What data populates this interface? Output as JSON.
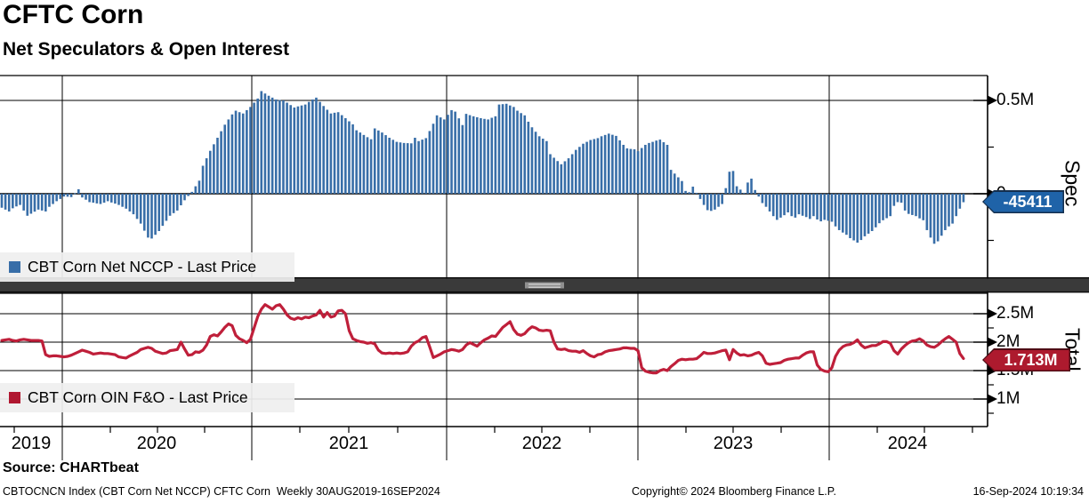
{
  "header": {
    "title": "CFTC Corn",
    "subtitle": "Net Speculators & Open Interest"
  },
  "panels": {
    "spec": {
      "legend": "CBT Corn Net NCCP - Last Price",
      "axis_label": "Spec",
      "last_badge": "-45411",
      "badge_color": "#1f63a8",
      "badge_border": "#142f4e",
      "series_color": "#386ea8"
    },
    "total": {
      "legend": "CBT Corn OIN F&O - Last Price",
      "axis_label": "Total",
      "last_badge": "1.713M",
      "badge_color": "#ad1a2e",
      "badge_border": "#4e0c15",
      "series_color": "#bf1f3a",
      "swatch_color": "#b01730"
    }
  },
  "footer": {
    "source": "Source: CHARTbeat",
    "description": "CBTOCNCN Index (CBT Corn Net NCCP) CFTC Corn  Weekly 30AUG2019-16SEP2024",
    "copyright": "Copyright© 2024 Bloomberg Finance L.P.",
    "timestamp": "16-Sep-2024 10:19:34"
  },
  "chart_data": [
    {
      "type": "bar",
      "title": "CBT Corn Net NCCP - Last Price",
      "ylabel": "Spec",
      "unit": "contracts",
      "frequency": "weekly",
      "x_range": [
        "30AUG2019",
        "16SEP2024"
      ],
      "ylim": [
        -452000,
        633000
      ],
      "grid": true,
      "ticks": [
        {
          "value": 500000,
          "label": "0.5M"
        },
        {
          "value": 0,
          "label": "0"
        }
      ],
      "minor_tick_values": [
        250000,
        -250000
      ],
      "last_value": -45411,
      "values": [
        -75000,
        -85000,
        -95000,
        -78000,
        -68000,
        -60000,
        -90000,
        -118000,
        -107000,
        -96000,
        -85000,
        -90000,
        -95000,
        -70000,
        -55000,
        -40000,
        -28000,
        -15000,
        -16000,
        -18000,
        3000,
        24000,
        -20000,
        -32000,
        -45000,
        -48000,
        -52000,
        -55000,
        -48000,
        -40000,
        -47000,
        -53000,
        -60000,
        -70000,
        -80000,
        -95000,
        -110000,
        -135000,
        -160000,
        -198000,
        -235000,
        -240000,
        -220000,
        -200000,
        -172000,
        -145000,
        -118000,
        -104000,
        -90000,
        -62000,
        -35000,
        -12000,
        10000,
        40000,
        70000,
        150000,
        190000,
        230000,
        265000,
        300000,
        335000,
        370000,
        398000,
        425000,
        445000,
        437000,
        430000,
        448000,
        465000,
        488000,
        510000,
        550000,
        537000,
        525000,
        515000,
        505000,
        502000,
        500000,
        488000,
        475000,
        462000,
        468000,
        473000,
        478000,
        492000,
        505000,
        515000,
        492000,
        470000,
        450000,
        430000,
        434000,
        437000,
        421000,
        405000,
        388000,
        372000,
        340000,
        328000,
        315000,
        303000,
        292000,
        350000,
        339000,
        328000,
        314000,
        300000,
        289000,
        278000,
        275000,
        272000,
        271000,
        270000,
        300000,
        282000,
        290000,
        298000,
        336000,
        375000,
        420000,
        409000,
        398000,
        423000,
        448000,
        440000,
        404000,
        368000,
        428000,
        421000,
        415000,
        410000,
        405000,
        401000,
        398000,
        407000,
        415000,
        478000,
        480000,
        482000,
        473000,
        465000,
        445000,
        432000,
        420000,
        386000,
        356000,
        332000,
        308000,
        295000,
        282000,
        212000,
        193000,
        175000,
        158000,
        174000,
        190000,
        212000,
        235000,
        251000,
        268000,
        278000,
        288000,
        293000,
        298000,
        308000,
        315000,
        322000,
        316000,
        310000,
        286000,
        262000,
        243000,
        240000,
        238000,
        228000,
        245000,
        262000,
        272000,
        278000,
        285000,
        290000,
        276000,
        262000,
        128000,
        108000,
        88000,
        68000,
        15000,
        8000,
        38000,
        5000,
        -28000,
        -60000,
        -88000,
        -92000,
        -85000,
        -70000,
        -55000,
        30000,
        118000,
        122000,
        40000,
        22000,
        5000,
        60000,
        81000,
        20000,
        -15000,
        -50000,
        -70000,
        -95000,
        -120000,
        -140000,
        -128000,
        -115000,
        -100000,
        -120000,
        -128000,
        -110000,
        -118000,
        -125000,
        -135000,
        -120000,
        -138000,
        -148000,
        -140000,
        -145000,
        -150000,
        -175000,
        -195000,
        -208000,
        -220000,
        -238000,
        -250000,
        -262000,
        -248000,
        -228000,
        -214000,
        -200000,
        -180000,
        -158000,
        -142000,
        -131000,
        -120000,
        -65000,
        -45000,
        -48000,
        -90000,
        -108000,
        -114000,
        -120000,
        -132000,
        -142000,
        -195000,
        -235000,
        -268000,
        -255000,
        -225000,
        -195000,
        -175000,
        -160000,
        -120000,
        -80000,
        -45411
      ]
    },
    {
      "type": "line",
      "title": "CBT Corn OIN F&O - Last Price",
      "ylabel": "Total",
      "unit": "contracts (millions)",
      "frequency": "weekly",
      "x_range": [
        "30AUG2019",
        "16SEP2024"
      ],
      "ylim": [
        0.52,
        2.86
      ],
      "grid": true,
      "ticks": [
        {
          "value": 2.5,
          "label": "2.5M"
        },
        {
          "value": 2.0,
          "label": "2M"
        },
        {
          "value": 1.5,
          "label": "1.5M"
        },
        {
          "value": 1.0,
          "label": "1M"
        }
      ],
      "minor_tick_values": [
        2.25,
        1.75,
        1.25,
        0.75
      ],
      "last_value": 1.713,
      "values": [
        2.03,
        2.04,
        2.05,
        2.03,
        2.02,
        2.04,
        2.05,
        2.04,
        2.03,
        2.03,
        2.03,
        2.02,
        1.78,
        1.75,
        1.76,
        1.76,
        1.75,
        1.74,
        1.75,
        1.77,
        1.8,
        1.83,
        1.86,
        1.84,
        1.82,
        1.79,
        1.8,
        1.81,
        1.8,
        1.8,
        1.79,
        1.78,
        1.74,
        1.73,
        1.72,
        1.76,
        1.79,
        1.82,
        1.87,
        1.89,
        1.91,
        1.89,
        1.84,
        1.82,
        1.8,
        1.81,
        1.85,
        1.86,
        1.87,
        2.0,
        1.88,
        1.77,
        1.78,
        1.83,
        1.82,
        1.86,
        1.95,
        2.1,
        2.13,
        2.11,
        2.18,
        2.26,
        2.32,
        2.29,
        2.12,
        2.06,
        2.03,
        1.99,
        2.05,
        2.25,
        2.45,
        2.58,
        2.66,
        2.62,
        2.58,
        2.64,
        2.66,
        2.58,
        2.48,
        2.42,
        2.4,
        2.43,
        2.41,
        2.44,
        2.43,
        2.46,
        2.48,
        2.56,
        2.44,
        2.52,
        2.44,
        2.46,
        2.55,
        2.56,
        2.5,
        2.2,
        2.06,
        2.03,
        2.01,
        2.0,
        1.98,
        1.99,
        1.97,
        1.86,
        1.81,
        1.8,
        1.81,
        1.8,
        1.81,
        1.8,
        1.81,
        1.83,
        1.93,
        1.99,
        2.02,
        2.08,
        2.1,
        1.92,
        1.73,
        1.76,
        1.79,
        1.83,
        1.85,
        1.87,
        1.86,
        1.84,
        1.87,
        1.95,
        1.99,
        1.96,
        1.93,
        1.99,
        2.04,
        2.07,
        2.11,
        2.1,
        2.18,
        2.26,
        2.31,
        2.36,
        2.22,
        2.14,
        2.12,
        2.15,
        2.22,
        2.27,
        2.25,
        2.21,
        2.2,
        2.21,
        2.2,
        2.0,
        1.88,
        1.87,
        1.88,
        1.85,
        1.84,
        1.84,
        1.82,
        1.85,
        1.8,
        1.76,
        1.74,
        1.78,
        1.79,
        1.83,
        1.85,
        1.86,
        1.87,
        1.88,
        1.9,
        1.9,
        1.89,
        1.89,
        1.85,
        1.55,
        1.49,
        1.47,
        1.46,
        1.46,
        1.5,
        1.52,
        1.5,
        1.57,
        1.62,
        1.68,
        1.7,
        1.69,
        1.7,
        1.7,
        1.71,
        1.76,
        1.82,
        1.8,
        1.8,
        1.81,
        1.83,
        1.85,
        1.86,
        1.69,
        1.87,
        1.81,
        1.77,
        1.78,
        1.76,
        1.77,
        1.8,
        1.82,
        1.76,
        1.63,
        1.61,
        1.62,
        1.63,
        1.64,
        1.68,
        1.7,
        1.71,
        1.72,
        1.72,
        1.77,
        1.81,
        1.83,
        1.83,
        1.6,
        1.52,
        1.49,
        1.48,
        1.55,
        1.75,
        1.86,
        1.92,
        1.95,
        1.96,
        1.99,
        2.04,
        1.95,
        1.9,
        1.92,
        1.94,
        1.94,
        1.97,
        2.01,
        2.01,
        1.98,
        1.85,
        1.79,
        1.88,
        1.94,
        1.99,
        2.02,
        2.03,
        2.06,
        2.02,
        1.95,
        1.92,
        1.91,
        1.95,
        2.01,
        2.06,
        2.1,
        2.05,
        2.0,
        1.8,
        1.713
      ]
    }
  ],
  "x_axis": {
    "years": [
      "2019",
      "2020",
      "2021",
      "2022",
      "2023",
      "2024"
    ]
  }
}
